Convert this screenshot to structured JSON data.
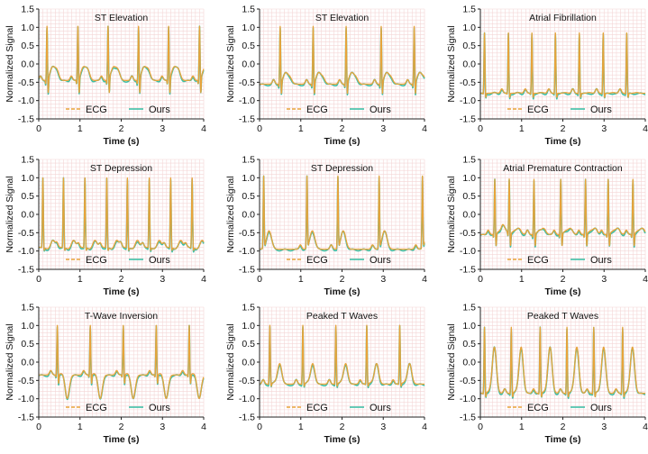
{
  "figure": {
    "colors": {
      "ecg": "#E8A33A",
      "ours": "#3FBFA6",
      "grid": "#F4D6D6",
      "axis": "#222222"
    },
    "legend": {
      "ecg_label": "ECG",
      "ours_label": "Ours"
    }
  },
  "chart_data": [
    {
      "type": "line",
      "title": "ST Elevation",
      "xlabel": "Time (s)",
      "ylabel": "Normalized Signal",
      "xlim": [
        0,
        4
      ],
      "ylim": [
        -1.5,
        1.5
      ],
      "xticks": [
        "0",
        "1",
        "2",
        "3",
        "4"
      ],
      "yticks": [
        "-1.5",
        "-1.0",
        "-0.5",
        "0.0",
        "0.5",
        "1.0",
        "1.5"
      ],
      "legend": "bottom-center",
      "grid": true,
      "beat_times": [
        0.2,
        0.95,
        1.68,
        2.42,
        3.15,
        3.9
      ],
      "baseline": -0.45,
      "r_peak": 1.0,
      "s_trough": -0.95,
      "st_level": -0.1,
      "t_wave": 0.15,
      "series": [
        {
          "name": "ECG"
        },
        {
          "name": "Ours"
        }
      ]
    },
    {
      "type": "line",
      "title": "ST Elevation",
      "xlabel": "Time (s)",
      "ylabel": "Normalized Signal",
      "xlim": [
        0,
        4
      ],
      "ylim": [
        -1.5,
        1.5
      ],
      "xticks": [
        "0",
        "1",
        "2",
        "3",
        "4"
      ],
      "yticks": [
        "-1.5",
        "-1.0",
        "-0.5",
        "0.0",
        "0.5",
        "1.0",
        "1.5"
      ],
      "legend": "bottom-center",
      "grid": true,
      "beat_times": [
        0.5,
        1.3,
        2.1,
        2.95,
        3.75
      ],
      "baseline": -0.55,
      "r_peak": 1.0,
      "s_trough": -0.95,
      "st_level": -0.25,
      "t_wave": -0.1,
      "series": [
        {
          "name": "ECG"
        },
        {
          "name": "Ours"
        }
      ]
    },
    {
      "type": "line",
      "title": "Atrial Fibrillation",
      "xlabel": "Time (s)",
      "ylabel": "Normalized Signal",
      "xlim": [
        0,
        4
      ],
      "ylim": [
        -1.5,
        1.5
      ],
      "xticks": [
        "0",
        "1",
        "2",
        "3",
        "4"
      ],
      "yticks": [
        "-1.5",
        "-1.0",
        "-0.5",
        "0.0",
        "0.5",
        "1.0",
        "1.5"
      ],
      "legend": "bottom-center",
      "grid": true,
      "beat_times": [
        0.1,
        0.68,
        1.25,
        1.82,
        2.4,
        2.98,
        3.55
      ],
      "baseline": -0.8,
      "r_peak": 0.85,
      "s_trough": -0.95,
      "st_level": -0.8,
      "t_wave": -0.78,
      "series": [
        {
          "name": "ECG"
        },
        {
          "name": "Ours"
        }
      ]
    },
    {
      "type": "line",
      "title": "ST Depression",
      "xlabel": "Time (s)",
      "ylabel": "Normalized Signal",
      "xlim": [
        0,
        4
      ],
      "ylim": [
        -1.5,
        1.5
      ],
      "xticks": [
        "0",
        "1",
        "2",
        "3",
        "4"
      ],
      "yticks": [
        "-1.5",
        "-1.0",
        "-0.5",
        "0.0",
        "0.5",
        "1.0",
        "1.5"
      ],
      "legend": "bottom-center",
      "grid": true,
      "beat_times": [
        0.1,
        0.6,
        1.12,
        1.65,
        2.15,
        2.68,
        3.2,
        3.72
      ],
      "baseline": -0.9,
      "r_peak": 1.0,
      "s_trough": -1.0,
      "st_level": -0.95,
      "t_wave": -0.75,
      "series": [
        {
          "name": "ECG"
        },
        {
          "name": "Ours"
        }
      ]
    },
    {
      "type": "line",
      "title": "ST Depression",
      "xlabel": "Time (s)",
      "ylabel": "Normalized Signal",
      "xlim": [
        0,
        4
      ],
      "ylim": [
        -1.5,
        1.5
      ],
      "xticks": [
        "0",
        "1",
        "2",
        "3",
        "4"
      ],
      "yticks": [
        "-1.5",
        "-1.0",
        "-0.5",
        "0.0",
        "0.5",
        "1.0",
        "1.5"
      ],
      "legend": "bottom-center",
      "grid": true,
      "beat_times": [
        0.1,
        1.15,
        1.9,
        2.9,
        3.95
      ],
      "baseline": -0.95,
      "r_peak": 1.0,
      "s_trough": -1.0,
      "st_level": -0.45,
      "t_wave": -0.45,
      "series": [
        {
          "name": "ECG"
        },
        {
          "name": "Ours"
        }
      ]
    },
    {
      "type": "line",
      "title": "Atrial Premature Contraction",
      "xlabel": "Time (s)",
      "ylabel": "Normalized Signal",
      "xlim": [
        0,
        4
      ],
      "ylim": [
        -1.5,
        1.5
      ],
      "xticks": [
        "0",
        "1",
        "2",
        "3",
        "4"
      ],
      "yticks": [
        "-1.5",
        "-1.0",
        "-0.5",
        "0.0",
        "0.5",
        "1.0",
        "1.5"
      ],
      "legend": "bottom-center",
      "grid": true,
      "beat_times": [
        0.35,
        0.7,
        1.3,
        1.95,
        2.55,
        3.1,
        3.7
      ],
      "baseline": -0.55,
      "r_peak": 0.95,
      "s_trough": -0.95,
      "st_level": -0.45,
      "t_wave": -0.3,
      "series": [
        {
          "name": "ECG"
        },
        {
          "name": "Ours"
        }
      ]
    },
    {
      "type": "line",
      "title": "T-Wave Inversion",
      "xlabel": "Time (s)",
      "ylabel": "Normalized Signal",
      "xlim": [
        0,
        4
      ],
      "ylim": [
        -1.5,
        1.5
      ],
      "xticks": [
        "0",
        "1",
        "2",
        "3",
        "4"
      ],
      "yticks": [
        "-1.5",
        "-1.0",
        "-0.5",
        "0.0",
        "0.5",
        "1.0",
        "1.5"
      ],
      "legend": "bottom-center",
      "grid": true,
      "beat_times": [
        0.45,
        1.25,
        2.05,
        2.85,
        3.65
      ],
      "baseline": -0.35,
      "r_peak": 1.0,
      "s_trough": -0.65,
      "st_level": -0.3,
      "t_wave": -0.95,
      "series": [
        {
          "name": "ECG"
        },
        {
          "name": "Ours"
        }
      ]
    },
    {
      "type": "line",
      "title": "Peaked T Waves",
      "xlabel": "Time (s)",
      "ylabel": "Normalized Signal",
      "xlim": [
        0,
        4
      ],
      "ylim": [
        -1.5,
        1.5
      ],
      "xticks": [
        "0",
        "1",
        "2",
        "3",
        "4"
      ],
      "yticks": [
        "-1.5",
        "-1.0",
        "-0.5",
        "0.0",
        "0.5",
        "1.0",
        "1.5"
      ],
      "legend": "bottom-center",
      "grid": true,
      "beat_times": [
        0.25,
        1.05,
        1.85,
        2.6,
        3.4
      ],
      "baseline": -0.6,
      "r_peak": 1.0,
      "s_trough": -0.7,
      "st_level": -0.55,
      "t_wave": 0.0,
      "series": [
        {
          "name": "ECG"
        },
        {
          "name": "Ours"
        }
      ]
    },
    {
      "type": "line",
      "title": "Peaked T Waves",
      "xlabel": "Time (s)",
      "ylabel": "Normalized Signal",
      "xlim": [
        0,
        4
      ],
      "ylim": [
        -1.5,
        1.5
      ],
      "xticks": [
        "0",
        "1",
        "2",
        "3",
        "4"
      ],
      "yticks": [
        "-1.5",
        "-1.0",
        "-0.5",
        "0.0",
        "0.5",
        "1.0",
        "1.5"
      ],
      "legend": "bottom-center",
      "grid": true,
      "beat_times": [
        0.1,
        0.75,
        1.45,
        2.1,
        2.75,
        3.45
      ],
      "baseline": -0.85,
      "r_peak": 0.95,
      "s_trough": -1.0,
      "st_level": -0.8,
      "t_wave": 0.45,
      "series": [
        {
          "name": "ECG"
        },
        {
          "name": "Ours"
        }
      ]
    }
  ]
}
